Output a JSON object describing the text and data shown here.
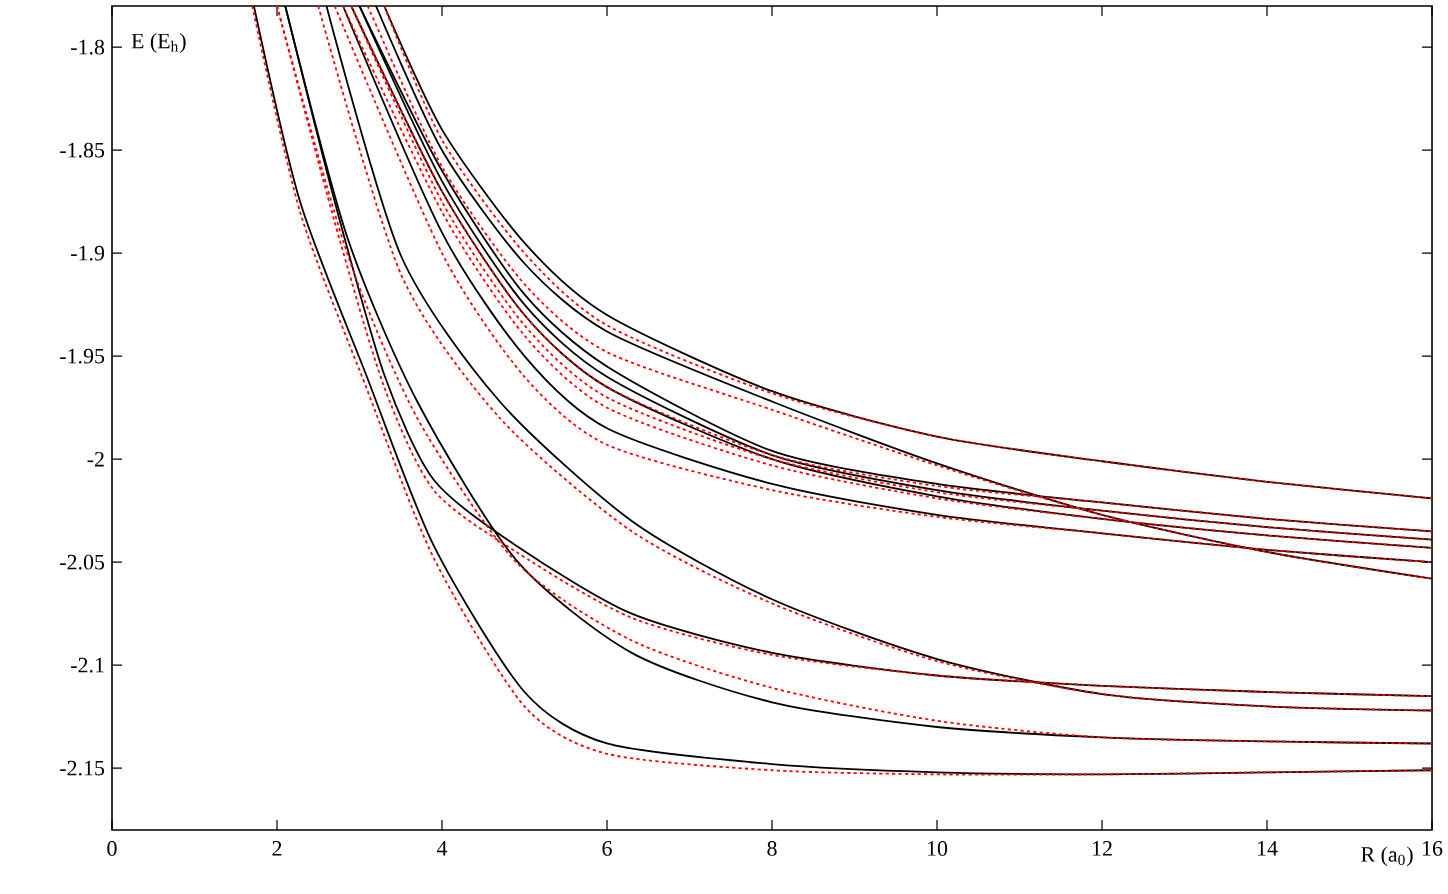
{
  "chart_data": {
    "type": "line",
    "xlabel": "R (a$_{0}$)",
    "ylabel": "E (E$_{h}$)",
    "xlim": [
      0,
      16
    ],
    "ylim": [
      -2.18,
      -1.78
    ],
    "xticks": [
      0,
      2,
      4,
      6,
      8,
      10,
      12,
      14,
      16
    ],
    "yticks": [
      -1.8,
      -1.85,
      -1.9,
      -1.95,
      -2,
      -2.05,
      -2.1,
      -2.15
    ],
    "grid": false,
    "marker": "none",
    "series": [
      {
        "color": "#000000",
        "line_style": "solid",
        "x": [
          3.3,
          4,
          5,
          6,
          8,
          10,
          12,
          14,
          16
        ],
        "values": [
          -1.78,
          -1.84,
          -1.895,
          -1.93,
          -1.967,
          -1.989,
          -2.001,
          -2.011,
          -2.019
        ]
      },
      {
        "color": "#000000",
        "line_style": "solid",
        "x": [
          3.2,
          4,
          5,
          6,
          8,
          10,
          12,
          14,
          16
        ],
        "values": [
          -1.78,
          -1.85,
          -1.905,
          -1.938,
          -1.972,
          -2.002,
          -2.027,
          -2.045,
          -2.058
        ]
      },
      {
        "color": "#000000",
        "line_style": "solid",
        "x": [
          3.0,
          4,
          5,
          6,
          8,
          10,
          12,
          14,
          16
        ],
        "values": [
          -1.78,
          -1.86,
          -1.92,
          -1.955,
          -1.996,
          -2.012,
          -2.021,
          -2.029,
          -2.035
        ]
      },
      {
        "color": "#000000",
        "line_style": "solid",
        "x": [
          3.0,
          4,
          5,
          6,
          8,
          10,
          12,
          14,
          16
        ],
        "values": [
          -1.78,
          -1.865,
          -1.925,
          -1.96,
          -1.998,
          -2.015,
          -2.025,
          -2.033,
          -2.039
        ]
      },
      {
        "color": "#000000",
        "line_style": "solid",
        "x": [
          2.9,
          4,
          5,
          6,
          8,
          10,
          12,
          14,
          16
        ],
        "values": [
          -1.78,
          -1.87,
          -1.93,
          -1.965,
          -2.0,
          -2.018,
          -2.029,
          -2.037,
          -2.043
        ]
      },
      {
        "color": "#000000",
        "line_style": "solid",
        "x": [
          2.8,
          4,
          5,
          6,
          8,
          10,
          12,
          14,
          16
        ],
        "values": [
          -1.78,
          -1.89,
          -1.95,
          -1.985,
          -2.012,
          -2.027,
          -2.036,
          -2.044,
          -2.05
        ]
      },
      {
        "color": "#000000",
        "line_style": "solid",
        "x": [
          2.6,
          3.5,
          4.7,
          6.3,
          8,
          10,
          12,
          14,
          16
        ],
        "values": [
          -1.78,
          -1.901,
          -1.972,
          -2.03,
          -2.068,
          -2.097,
          -2.114,
          -2.12,
          -2.122
        ]
      },
      {
        "color": "#000000",
        "line_style": "solid",
        "x": [
          2.1,
          2.7,
          3.3,
          3.9,
          4.9,
          6.3,
          8,
          10,
          12,
          14,
          16
        ],
        "values": [
          -1.78,
          -1.875,
          -1.959,
          -2.01,
          -2.042,
          -2.075,
          -2.094,
          -2.105,
          -2.11,
          -2.113,
          -2.115
        ]
      },
      {
        "color": "#000000",
        "line_style": "solid",
        "x": [
          2.1,
          2.85,
          3.7,
          4.9,
          6.3,
          8,
          10,
          12,
          14,
          16
        ],
        "values": [
          -1.78,
          -1.892,
          -1.972,
          -2.049,
          -2.094,
          -2.118,
          -2.13,
          -2.135,
          -2.137,
          -2.138
        ]
      },
      {
        "color": "#000000",
        "line_style": "solid",
        "x": [
          1.72,
          2.28,
          3.08,
          3.9,
          5,
          6,
          8,
          10,
          12,
          14,
          16
        ],
        "values": [
          -1.78,
          -1.875,
          -1.959,
          -2.042,
          -2.113,
          -2.138,
          -2.148,
          -2.152,
          -2.153,
          -2.152,
          -2.151
        ]
      },
      {
        "color": "#ff0000",
        "line_style": "dotted",
        "x": [
          3.3,
          4,
          5,
          6,
          8,
          10,
          12,
          14,
          16
        ],
        "values": [
          -1.78,
          -1.845,
          -1.9,
          -1.935,
          -1.968,
          -1.989,
          -2.001,
          -2.011,
          -2.019
        ]
      },
      {
        "color": "#ff0000",
        "line_style": "dotted",
        "x": [
          3.1,
          4,
          5,
          6,
          8,
          10,
          12,
          14,
          16
        ],
        "values": [
          -1.78,
          -1.858,
          -1.915,
          -1.948,
          -1.976,
          -2.003,
          -2.027,
          -2.045,
          -2.058
        ]
      },
      {
        "color": "#ff0000",
        "line_style": "dotted",
        "x": [
          2.9,
          4,
          5,
          6,
          8,
          10,
          12,
          14,
          16
        ],
        "values": [
          -1.78,
          -1.87,
          -1.93,
          -1.965,
          -1.998,
          -2.013,
          -2.021,
          -2.029,
          -2.035
        ]
      },
      {
        "color": "#ff0000",
        "line_style": "dotted",
        "x": [
          2.9,
          4,
          5,
          6,
          8,
          10,
          12,
          14,
          16
        ],
        "values": [
          -1.78,
          -1.875,
          -1.935,
          -1.97,
          -2.0,
          -2.016,
          -2.025,
          -2.033,
          -2.039
        ]
      },
      {
        "color": "#ff0000",
        "line_style": "dotted",
        "x": [
          2.8,
          4,
          5,
          6,
          8,
          10,
          12,
          14,
          16
        ],
        "values": [
          -1.78,
          -1.88,
          -1.94,
          -1.975,
          -2.003,
          -2.019,
          -2.029,
          -2.037,
          -2.043
        ]
      },
      {
        "color": "#ff0000",
        "line_style": "dotted",
        "x": [
          2.7,
          4,
          5,
          6,
          8,
          10,
          12,
          14,
          16
        ],
        "values": [
          -1.78,
          -1.9,
          -1.96,
          -1.993,
          -2.015,
          -2.028,
          -2.036,
          -2.044,
          -2.05
        ]
      },
      {
        "color": "#ff0000",
        "line_style": "dotted",
        "x": [
          2.5,
          3.5,
          4.7,
          6.3,
          8,
          10,
          12,
          14,
          16
        ],
        "values": [
          -1.78,
          -1.91,
          -1.98,
          -2.035,
          -2.07,
          -2.098,
          -2.114,
          -2.12,
          -2.122
        ]
      },
      {
        "color": "#ff0000",
        "line_style": "dotted",
        "x": [
          2.0,
          2.7,
          3.3,
          3.9,
          4.9,
          6.3,
          8,
          10,
          12,
          14,
          16
        ],
        "values": [
          -1.78,
          -1.885,
          -1.965,
          -2.015,
          -2.045,
          -2.077,
          -2.095,
          -2.105,
          -2.11,
          -2.113,
          -2.115
        ]
      },
      {
        "color": "#ff0000",
        "line_style": "dotted",
        "x": [
          2.0,
          2.85,
          3.7,
          4.9,
          6.3,
          8,
          10,
          12,
          14,
          16
        ],
        "values": [
          -1.78,
          -1.9,
          -1.98,
          -2.05,
          -2.088,
          -2.111,
          -2.127,
          -2.135,
          -2.137,
          -2.138
        ]
      },
      {
        "color": "#ff0000",
        "line_style": "dotted",
        "x": [
          1.7,
          2.28,
          3.08,
          3.9,
          5,
          6,
          8,
          10,
          12,
          14,
          16
        ],
        "values": [
          -1.78,
          -1.88,
          -1.965,
          -2.048,
          -2.12,
          -2.143,
          -2.151,
          -2.153,
          -2.153,
          -2.152,
          -2.151
        ]
      }
    ]
  }
}
